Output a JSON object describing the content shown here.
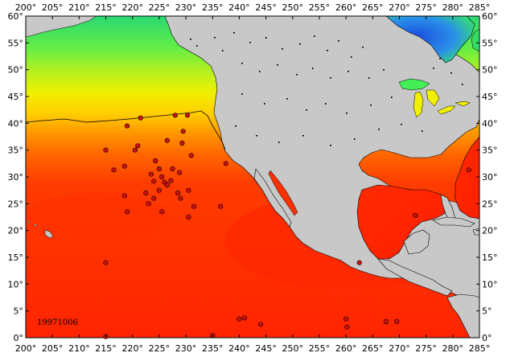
{
  "map": {
    "date_label": "19971006",
    "lon_range": [
      200,
      285
    ],
    "lat_range": [
      0,
      60
    ],
    "lon_ticks": [
      "200°",
      "205°",
      "210°",
      "215°",
      "220°",
      "225°",
      "230°",
      "235°",
      "240°",
      "245°",
      "250°",
      "255°",
      "260°",
      "265°",
      "270°",
      "275°",
      "280°",
      "285°"
    ],
    "lat_ticks": [
      "0°",
      "5°",
      "10°",
      "15°",
      "20°",
      "25°",
      "30°",
      "35°",
      "40°",
      "45°",
      "50°",
      "55°",
      "60°"
    ],
    "colors": {
      "land": "#c8c8c8",
      "warm": "#ff2a00",
      "orange": "#ff7a00",
      "yellow": "#f2f200",
      "green": "#33ee55",
      "cool": "#2277ee",
      "point": "#d01010"
    },
    "observation_points": [
      {
        "lon": 221.5,
        "lat": 41.0
      },
      {
        "lon": 219.0,
        "lat": 39.5
      },
      {
        "lon": 228.0,
        "lat": 41.5
      },
      {
        "lon": 230.3,
        "lat": 41.5
      },
      {
        "lon": 229.5,
        "lat": 38.5
      },
      {
        "lon": 215.0,
        "lat": 35.0
      },
      {
        "lon": 221.0,
        "lat": 35.8
      },
      {
        "lon": 220.5,
        "lat": 35.0
      },
      {
        "lon": 226.5,
        "lat": 36.8
      },
      {
        "lon": 229.3,
        "lat": 36.3
      },
      {
        "lon": 231.0,
        "lat": 34.0
      },
      {
        "lon": 237.5,
        "lat": 32.5
      },
      {
        "lon": 216.5,
        "lat": 31.3
      },
      {
        "lon": 218.5,
        "lat": 32.0
      },
      {
        "lon": 224.3,
        "lat": 33.0
      },
      {
        "lon": 225.0,
        "lat": 31.5
      },
      {
        "lon": 223.5,
        "lat": 30.5
      },
      {
        "lon": 225.5,
        "lat": 30.0
      },
      {
        "lon": 227.5,
        "lat": 31.5
      },
      {
        "lon": 228.8,
        "lat": 30.8
      },
      {
        "lon": 224.0,
        "lat": 29.2
      },
      {
        "lon": 226.0,
        "lat": 29.0
      },
      {
        "lon": 226.5,
        "lat": 28.5
      },
      {
        "lon": 227.2,
        "lat": 29.3
      },
      {
        "lon": 222.5,
        "lat": 27.0
      },
      {
        "lon": 225.0,
        "lat": 27.5
      },
      {
        "lon": 228.5,
        "lat": 27.0
      },
      {
        "lon": 229.0,
        "lat": 26.0
      },
      {
        "lon": 230.5,
        "lat": 27.5
      },
      {
        "lon": 218.5,
        "lat": 26.5
      },
      {
        "lon": 224.0,
        "lat": 26.0
      },
      {
        "lon": 223.0,
        "lat": 25.0
      },
      {
        "lon": 231.5,
        "lat": 24.5
      },
      {
        "lon": 236.5,
        "lat": 24.5
      },
      {
        "lon": 219.0,
        "lat": 23.5
      },
      {
        "lon": 225.5,
        "lat": 23.5
      },
      {
        "lon": 230.5,
        "lat": 22.5
      },
      {
        "lon": 215.0,
        "lat": 14.0
      },
      {
        "lon": 262.5,
        "lat": 14.0
      },
      {
        "lon": 240.0,
        "lat": 3.5
      },
      {
        "lon": 241.0,
        "lat": 3.7
      },
      {
        "lon": 244.0,
        "lat": 2.5
      },
      {
        "lon": 260.0,
        "lat": 3.5
      },
      {
        "lon": 260.2,
        "lat": 2.0
      },
      {
        "lon": 267.5,
        "lat": 3.0
      },
      {
        "lon": 269.5,
        "lat": 3.0
      },
      {
        "lon": 215.0,
        "lat": 0.2
      },
      {
        "lon": 235.0,
        "lat": 0.4
      },
      {
        "lon": 273.0,
        "lat": 22.8
      },
      {
        "lon": 283.0,
        "lat": 31.3
      }
    ]
  }
}
